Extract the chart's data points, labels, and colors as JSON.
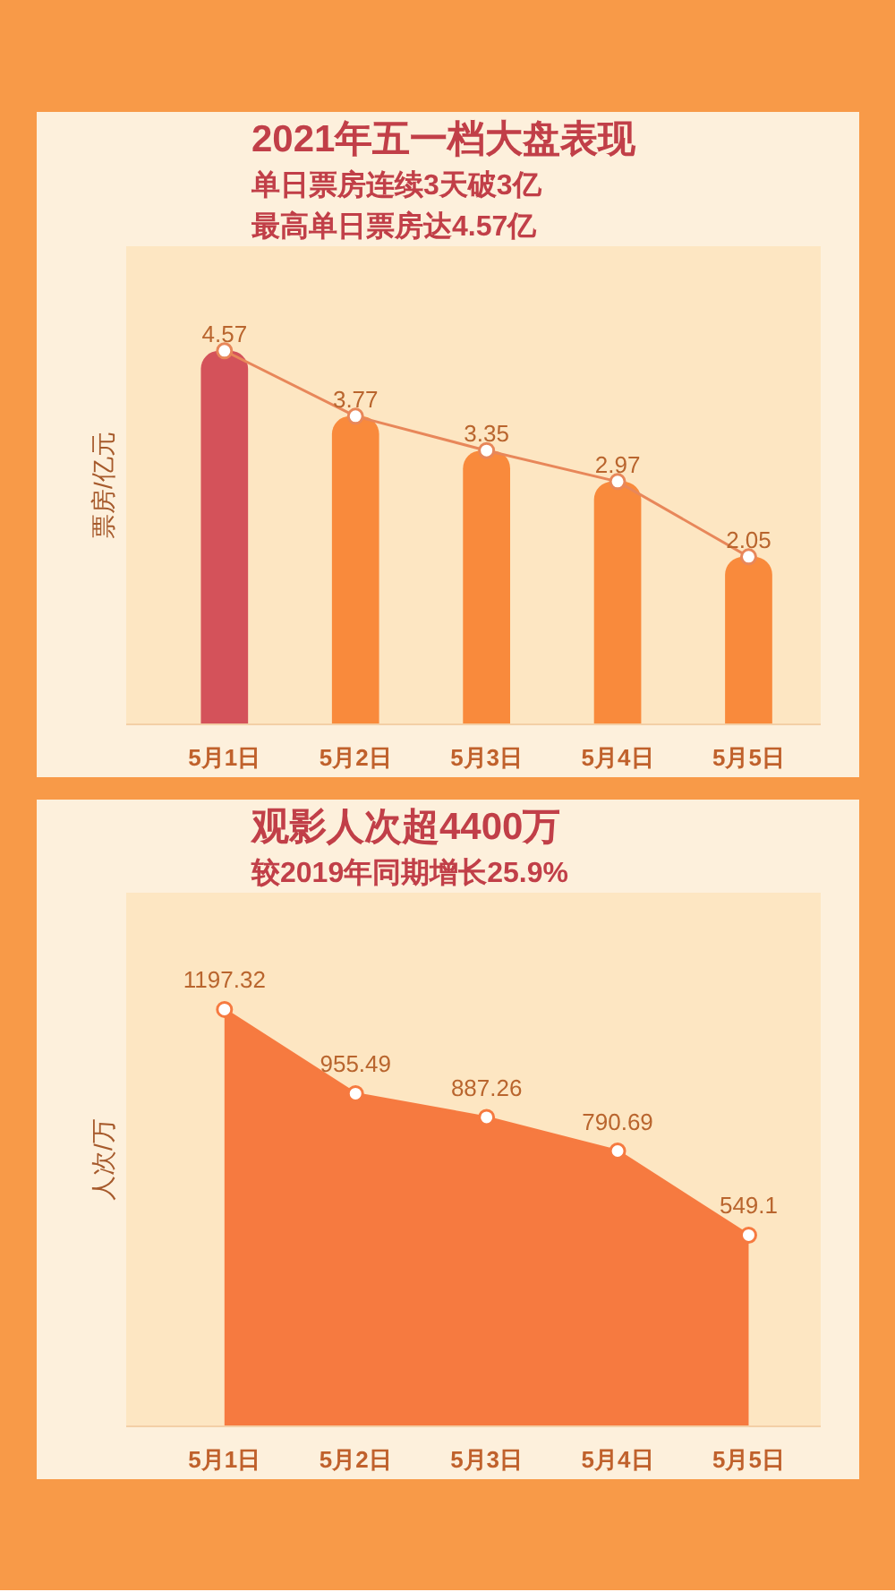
{
  "chart_data": [
    {
      "type": "bar",
      "title": "2021年五一档大盘表现",
      "subtitle": "单日票房连续3天破3亿",
      "annotations": [
        "最高单日票房达4.57亿"
      ],
      "ylabel": "票房/亿元",
      "categories": [
        "5月1日",
        "5月2日",
        "5月3日",
        "5月4日",
        "5月5日"
      ],
      "series": [
        {
          "type": "bar",
          "colors": [
            "#d4525a",
            "#f98a3c",
            "#f98a3c",
            "#f98a3c",
            "#f98a3c"
          ],
          "values": [
            4.57,
            3.77,
            3.35,
            2.97,
            2.05
          ],
          "value_labels": [
            "4.57",
            "3.77",
            "3.35",
            "2.97",
            "2.05"
          ]
        },
        {
          "type": "line",
          "color": "#e8875a",
          "values": [
            4.57,
            3.77,
            3.35,
            2.97,
            2.05
          ]
        }
      ],
      "marker": "circle"
    },
    {
      "type": "area",
      "title": "观影人次超4400万",
      "subtitle": "较2019年同期增长25.9%",
      "ylabel": "人次/万",
      "categories": [
        "5月1日",
        "5月2日",
        "5月3日",
        "5月4日",
        "5月5日"
      ],
      "series": [
        {
          "color": "#f67a40",
          "values": [
            1197.32,
            955.49,
            887.26,
            790.69,
            549.1
          ]
        }
      ],
      "marker": "circle",
      "data_labels": true
    }
  ]
}
